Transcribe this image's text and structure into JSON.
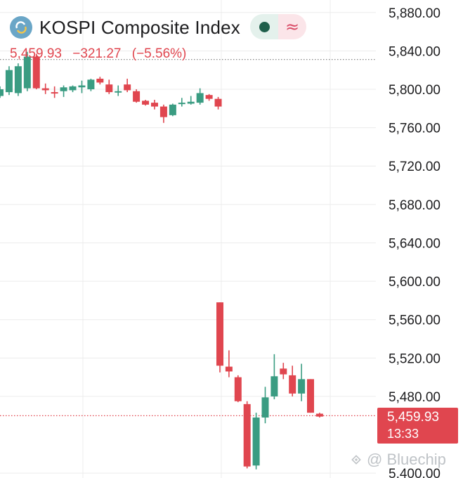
{
  "header": {
    "title": "KOSPI Composite Index",
    "price": "5,459.93",
    "change": "−321.27",
    "change_pct": "(−5.56%)",
    "toggle_left_icon": "dot-icon",
    "toggle_right_icon": "wave-icon",
    "toggle_right_glyph": "≈"
  },
  "price_tag": {
    "price": "5,459.93",
    "time": "13:33"
  },
  "watermark": {
    "text": "@ Bluechip"
  },
  "colors": {
    "up": "#3a9c82",
    "down": "#e0464f",
    "grid": "#ececec",
    "ref_line": "#888888"
  },
  "chart_data": {
    "type": "candlestick",
    "title": "KOSPI Composite Index",
    "ylim": [
      5395,
      5893
    ],
    "y_ticks": [
      "5,880.00",
      "5,840.00",
      "5,800.00",
      "5,760.00",
      "5,720.00",
      "5,680.00",
      "5,640.00",
      "5,600.00",
      "5,560.00",
      "5,520.00",
      "5,480.00",
      "5,400.00"
    ],
    "reference_line": 5831,
    "last_price": 5459.93,
    "grid": true,
    "candles": [
      {
        "o": 5793,
        "h": 5803,
        "l": 5791,
        "c": 5800
      },
      {
        "o": 5797,
        "h": 5824,
        "l": 5794,
        "c": 5820
      },
      {
        "o": 5796,
        "h": 5827,
        "l": 5793,
        "c": 5824
      },
      {
        "o": 5801,
        "h": 5839,
        "l": 5798,
        "c": 5834
      },
      {
        "o": 5834,
        "h": 5837,
        "l": 5800,
        "c": 5801
      },
      {
        "o": 5801,
        "h": 5806,
        "l": 5795,
        "c": 5799
      },
      {
        "o": 5797,
        "h": 5803,
        "l": 5791,
        "c": 5796
      },
      {
        "o": 5798,
        "h": 5804,
        "l": 5792,
        "c": 5802
      },
      {
        "o": 5799,
        "h": 5804,
        "l": 5797,
        "c": 5803
      },
      {
        "o": 5802,
        "h": 5809,
        "l": 5796,
        "c": 5804
      },
      {
        "o": 5800,
        "h": 5811,
        "l": 5798,
        "c": 5810
      },
      {
        "o": 5811,
        "h": 5813,
        "l": 5805,
        "c": 5807
      },
      {
        "o": 5805,
        "h": 5810,
        "l": 5795,
        "c": 5797
      },
      {
        "o": 5797,
        "h": 5804,
        "l": 5793,
        "c": 5798
      },
      {
        "o": 5805,
        "h": 5811,
        "l": 5797,
        "c": 5799
      },
      {
        "o": 5798,
        "h": 5800,
        "l": 5786,
        "c": 5787
      },
      {
        "o": 5788,
        "h": 5789,
        "l": 5783,
        "c": 5784
      },
      {
        "o": 5786,
        "h": 5789,
        "l": 5779,
        "c": 5782
      },
      {
        "o": 5782,
        "h": 5784,
        "l": 5765,
        "c": 5771
      },
      {
        "o": 5773,
        "h": 5785,
        "l": 5772,
        "c": 5784
      },
      {
        "o": 5785,
        "h": 5791,
        "l": 5782,
        "c": 5786
      },
      {
        "o": 5785,
        "h": 5793,
        "l": 5784,
        "c": 5787
      },
      {
        "o": 5786,
        "h": 5801,
        "l": 5784,
        "c": 5796
      },
      {
        "o": 5794,
        "h": 5795,
        "l": 5788,
        "c": 5790
      },
      {
        "o": 5790,
        "h": 5792,
        "l": 5779,
        "c": 5782
      },
      {
        "o": 5578,
        "h": 5578,
        "l": 5505,
        "c": 5512
      },
      {
        "o": 5511,
        "h": 5528,
        "l": 5500,
        "c": 5506
      },
      {
        "o": 5500,
        "h": 5502,
        "l": 5474,
        "c": 5475
      },
      {
        "o": 5472,
        "h": 5475,
        "l": 5405,
        "c": 5407
      },
      {
        "o": 5408,
        "h": 5463,
        "l": 5404,
        "c": 5458
      },
      {
        "o": 5458,
        "h": 5490,
        "l": 5452,
        "c": 5479
      },
      {
        "o": 5480,
        "h": 5524,
        "l": 5477,
        "c": 5501
      },
      {
        "o": 5509,
        "h": 5515,
        "l": 5498,
        "c": 5503
      },
      {
        "o": 5502,
        "h": 5512,
        "l": 5480,
        "c": 5483
      },
      {
        "o": 5483,
        "h": 5514,
        "l": 5475,
        "c": 5498
      },
      {
        "o": 5498,
        "h": 5498,
        "l": 5463,
        "c": 5463
      },
      {
        "o": 5462,
        "h": 5463,
        "l": 5458,
        "c": 5459
      }
    ]
  }
}
